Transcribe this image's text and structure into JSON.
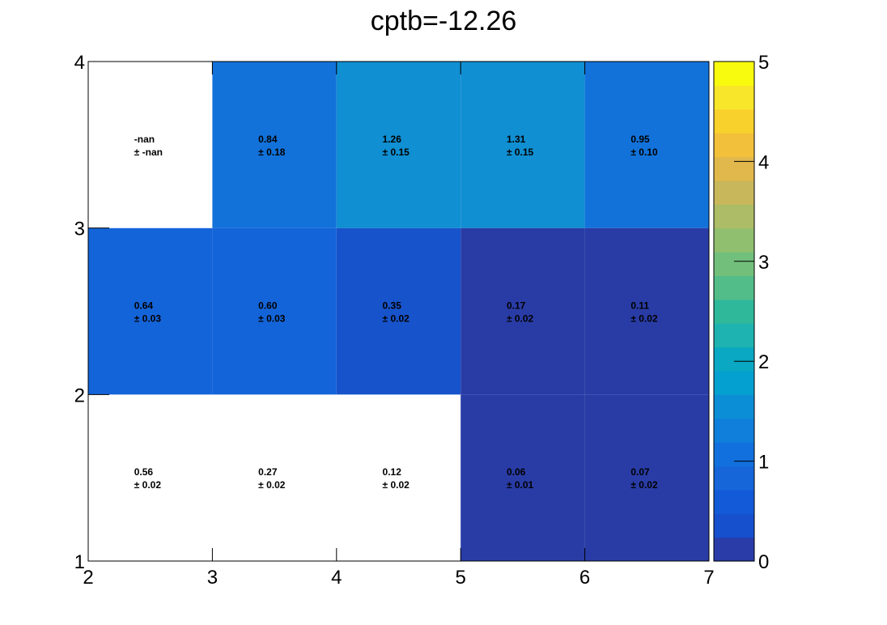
{
  "chart_data": {
    "type": "heatmap",
    "title": "cptb=-12.26",
    "xlabel": "",
    "ylabel": "",
    "xlim": [
      2,
      7
    ],
    "ylim": [
      1,
      4
    ],
    "x_edges": [
      2,
      3,
      4,
      5,
      6,
      7
    ],
    "y_edges": [
      1,
      2,
      3,
      4
    ],
    "x_ticks": [
      "2",
      "3",
      "4",
      "5",
      "6",
      "7"
    ],
    "y_ticks": [
      "1",
      "2",
      "3",
      "4"
    ],
    "colorbar": {
      "range": [
        0,
        5
      ],
      "ticks": [
        "0",
        "1",
        "2",
        "3",
        "4",
        "5"
      ],
      "colors": [
        "#2a3ca7",
        "#1650cd",
        "#135ad8",
        "#1666da",
        "#1170dd",
        "#0f7fdb",
        "#0b8ed5",
        "#04a0d0",
        "#0aa8c3",
        "#1eb3b0",
        "#30b89b",
        "#52bd89",
        "#72bf7c",
        "#91bf70",
        "#adbc66",
        "#c8b75b",
        "#e1b84c",
        "#f2c03a",
        "#f9d12d",
        "#f8e62a",
        "#f9fb0e"
      ]
    },
    "cells": [
      {
        "x": 2,
        "y": 1,
        "value": "0.56",
        "error": "± 0.02",
        "color": "#ffffff"
      },
      {
        "x": 3,
        "y": 1,
        "value": "0.27",
        "error": "± 0.02",
        "color": "#ffffff"
      },
      {
        "x": 4,
        "y": 1,
        "value": "0.12",
        "error": "± 0.02",
        "color": "#ffffff"
      },
      {
        "x": 5,
        "y": 1,
        "value": "0.06",
        "error": "± 0.01",
        "color": "#293ca6"
      },
      {
        "x": 6,
        "y": 1,
        "value": "0.07",
        "error": "± 0.02",
        "color": "#293ca6"
      },
      {
        "x": 2,
        "y": 2,
        "value": "0.64",
        "error": "± 0.03",
        "color": "#1464d9"
      },
      {
        "x": 3,
        "y": 2,
        "value": "0.60",
        "error": "± 0.03",
        "color": "#1464d9"
      },
      {
        "x": 4,
        "y": 2,
        "value": "0.35",
        "error": "± 0.02",
        "color": "#1753cb"
      },
      {
        "x": 5,
        "y": 2,
        "value": "0.17",
        "error": "± 0.02",
        "color": "#293ca6"
      },
      {
        "x": 6,
        "y": 2,
        "value": "0.11",
        "error": "± 0.02",
        "color": "#293ca6"
      },
      {
        "x": 2,
        "y": 3,
        "value": "-nan",
        "error": "± -nan",
        "color": "#ffffff"
      },
      {
        "x": 3,
        "y": 3,
        "value": "0.84",
        "error": "± 0.18",
        "color": "#1272da"
      },
      {
        "x": 4,
        "y": 3,
        "value": "1.26",
        "error": "± 0.15",
        "color": "#108fd2"
      },
      {
        "x": 5,
        "y": 3,
        "value": "1.31",
        "error": "± 0.15",
        "color": "#108fd2"
      },
      {
        "x": 6,
        "y": 3,
        "value": "0.95",
        "error": "± 0.10",
        "color": "#1272da"
      }
    ]
  }
}
